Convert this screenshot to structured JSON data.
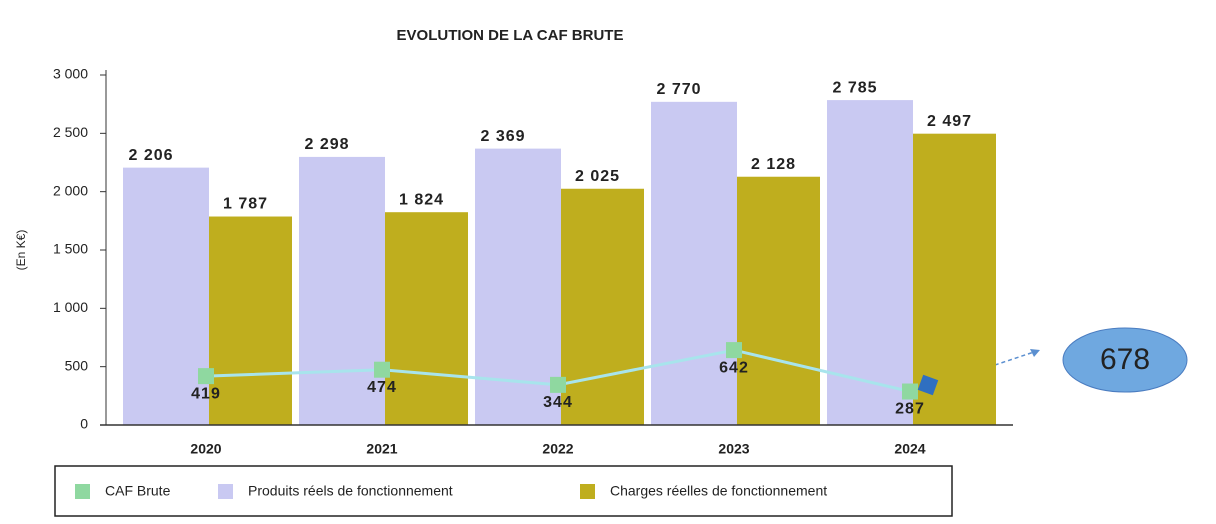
{
  "chart_data": {
    "type": "bar_line",
    "title": "EVOLUTION DE LA CAF BRUTE",
    "y_label": "(En K€)",
    "categories": [
      "2020",
      "2021",
      "2022",
      "2023",
      "2024"
    ],
    "series": [
      {
        "name": "CAF Brute",
        "type": "line",
        "color": "#8fd8a0",
        "line_color": "#a8e4ec",
        "values": [
          419,
          474,
          344,
          642,
          287
        ]
      },
      {
        "name": "Produits réels de fonctionnement",
        "type": "bar",
        "color": "#c9c9f2",
        "values": [
          2206,
          2298,
          2369,
          2770,
          2785
        ],
        "value_labels": [
          "2 206",
          "2 298",
          "2 369",
          "2 770",
          "2 785"
        ]
      },
      {
        "name": "Charges réelles de fonctionnement",
        "type": "bar",
        "color": "#bfae1e",
        "values": [
          1787,
          1824,
          2025,
          2128,
          2497
        ],
        "value_labels": [
          "1 787",
          "1 824",
          "2 025",
          "2 128",
          "2 497"
        ]
      }
    ],
    "ylim": [
      0,
      3000
    ],
    "yticks": [
      0,
      500,
      {
        "value": 1000,
        "label": "1 000"
      },
      {
        "value": 1500,
        "label": "1 500"
      },
      {
        "value": 2000,
        "label": "2 000"
      },
      {
        "value": 2500,
        "label": "2 500"
      },
      {
        "value": 3000,
        "label": "3 000"
      }
    ],
    "annotation": "678",
    "legend": "bottom"
  }
}
